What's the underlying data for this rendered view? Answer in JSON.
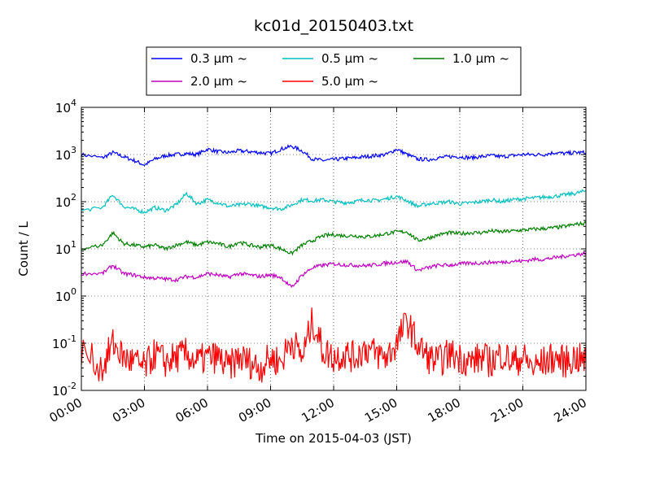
{
  "chart_data": {
    "type": "line",
    "title": "kc01d_20150403.txt",
    "xlabel": "Time on 2015-04-03 (JST)",
    "ylabel": "Count / L",
    "xlim": [
      "00:00",
      "24:00"
    ],
    "ylim": [
      0.01,
      10000
    ],
    "yscale": "log",
    "grid": true,
    "legend_position": "top, above plot",
    "x_ticks": [
      "00:00",
      "03:00",
      "06:00",
      "09:00",
      "12:00",
      "15:00",
      "18:00",
      "21:00",
      "24:00"
    ],
    "y_ticks": [
      {
        "base": "10",
        "exp": "-2"
      },
      {
        "base": "10",
        "exp": "-1"
      },
      {
        "base": "10",
        "exp": "0"
      },
      {
        "base": "10",
        "exp": "1"
      },
      {
        "base": "10",
        "exp": "2"
      },
      {
        "base": "10",
        "exp": "3"
      },
      {
        "base": "10",
        "exp": "4"
      }
    ],
    "x_hours": [
      0,
      1,
      1.5,
      2,
      2.5,
      3,
      3.5,
      4,
      4.5,
      5,
      5.5,
      6,
      6.5,
      7,
      7.5,
      8,
      8.5,
      9,
      9.5,
      10,
      10.5,
      11,
      11.5,
      12,
      12.5,
      13,
      13.5,
      14,
      14.5,
      15,
      15.5,
      16,
      16.5,
      17,
      17.5,
      18,
      18.5,
      19,
      19.5,
      20,
      20.5,
      21,
      21.5,
      22,
      22.5,
      23,
      23.5,
      24
    ],
    "series": [
      {
        "name": "0.3 μm ~",
        "color": "#0000ff",
        "values": [
          1000,
          850,
          1100,
          900,
          750,
          600,
          800,
          950,
          1000,
          1050,
          1000,
          1300,
          1150,
          1100,
          1200,
          1150,
          1100,
          1050,
          1300,
          1500,
          1200,
          800,
          750,
          780,
          820,
          850,
          900,
          950,
          1000,
          1300,
          1000,
          800,
          780,
          850,
          900,
          900,
          850,
          900,
          950,
          900,
          950,
          1000,
          1000,
          1000,
          1100,
          1050,
          1100,
          1100
        ]
      },
      {
        "name": "0.5 μm ~",
        "color": "#00bfbf",
        "values": [
          65,
          75,
          140,
          80,
          70,
          60,
          75,
          65,
          85,
          150,
          90,
          110,
          95,
          80,
          85,
          90,
          80,
          75,
          70,
          85,
          110,
          105,
          110,
          100,
          95,
          100,
          110,
          105,
          115,
          130,
          105,
          80,
          90,
          95,
          100,
          90,
          95,
          100,
          110,
          100,
          110,
          115,
          120,
          125,
          130,
          140,
          150,
          170
        ]
      },
      {
        "name": "1.0 μm ~",
        "color": "#007f00",
        "values": [
          10,
          12,
          22,
          13,
          12,
          11,
          12,
          10,
          12,
          14,
          12,
          14,
          13,
          11,
          14,
          12,
          11,
          12,
          10,
          8,
          12,
          15,
          19,
          20,
          19,
          19,
          18,
          19,
          21,
          23,
          23,
          15,
          17,
          20,
          22,
          21,
          22,
          22,
          24,
          23,
          24,
          25,
          26,
          27,
          28,
          30,
          33,
          35
        ]
      },
      {
        "name": "2.0 μm ~",
        "color": "#bf00bf",
        "values": [
          3,
          3,
          4.5,
          3,
          2.8,
          2.5,
          2.4,
          2.3,
          2.2,
          2.6,
          2.5,
          3,
          2.8,
          2.5,
          3,
          2.8,
          2.6,
          2.8,
          2.5,
          1.5,
          2.8,
          4,
          4.5,
          4.8,
          4.6,
          4.5,
          4.4,
          4.6,
          5,
          5.2,
          5.4,
          3.5,
          4,
          4.5,
          4.5,
          4.8,
          5,
          5,
          5.2,
          5.2,
          5.5,
          5.5,
          6,
          6,
          6.5,
          7,
          7.5,
          8
        ]
      },
      {
        "name": "5.0 μm ~",
        "color": "#ff0000",
        "values": [
          0.07,
          0.03,
          0.1,
          0.05,
          0.04,
          0.03,
          0.06,
          0.04,
          0.05,
          0.06,
          0.04,
          0.05,
          0.05,
          0.03,
          0.05,
          0.04,
          0.03,
          0.05,
          0.04,
          0.12,
          0.05,
          0.3,
          0.07,
          0.05,
          0.06,
          0.05,
          0.08,
          0.06,
          0.05,
          0.1,
          0.3,
          0.09,
          0.05,
          0.04,
          0.06,
          0.05,
          0.04,
          0.05,
          0.04,
          0.06,
          0.04,
          0.05,
          0.03,
          0.04,
          0.05,
          0.04,
          0.05,
          0.04
        ]
      }
    ]
  }
}
